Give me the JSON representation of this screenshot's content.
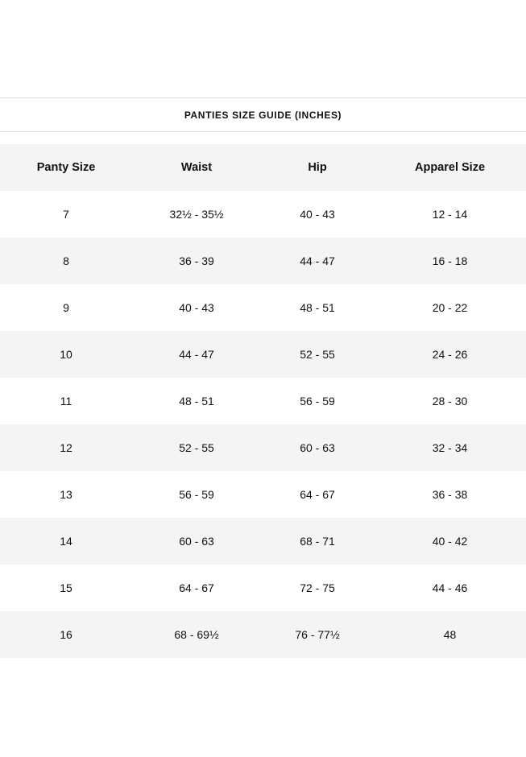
{
  "title": "PANTIES SIZE GUIDE (INCHES)",
  "colors": {
    "shaded_row": "#f4f4f4",
    "divider": "#e2e2e2",
    "text": "#111111"
  },
  "table": {
    "headers": [
      "Panty Size",
      "Waist",
      "Hip",
      "Apparel Size"
    ],
    "rows": [
      [
        "7",
        "32½ - 35½",
        "40 - 43",
        "12 - 14"
      ],
      [
        "8",
        "36 - 39",
        "44 - 47",
        "16 - 18"
      ],
      [
        "9",
        "40 - 43",
        "48 - 51",
        "20 - 22"
      ],
      [
        "10",
        "44 - 47",
        "52 - 55",
        "24 - 26"
      ],
      [
        "11",
        "48 - 51",
        "56 - 59",
        "28 - 30"
      ],
      [
        "12",
        "52 - 55",
        "60 - 63",
        "32 - 34"
      ],
      [
        "13",
        "56 - 59",
        "64 - 67",
        "36 - 38"
      ],
      [
        "14",
        "60 - 63",
        "68 - 71",
        "40 - 42"
      ],
      [
        "15",
        "64 - 67",
        "72 - 75",
        "44 - 46"
      ],
      [
        "16",
        "68 - 69½",
        "76 - 77½",
        "48"
      ]
    ]
  }
}
